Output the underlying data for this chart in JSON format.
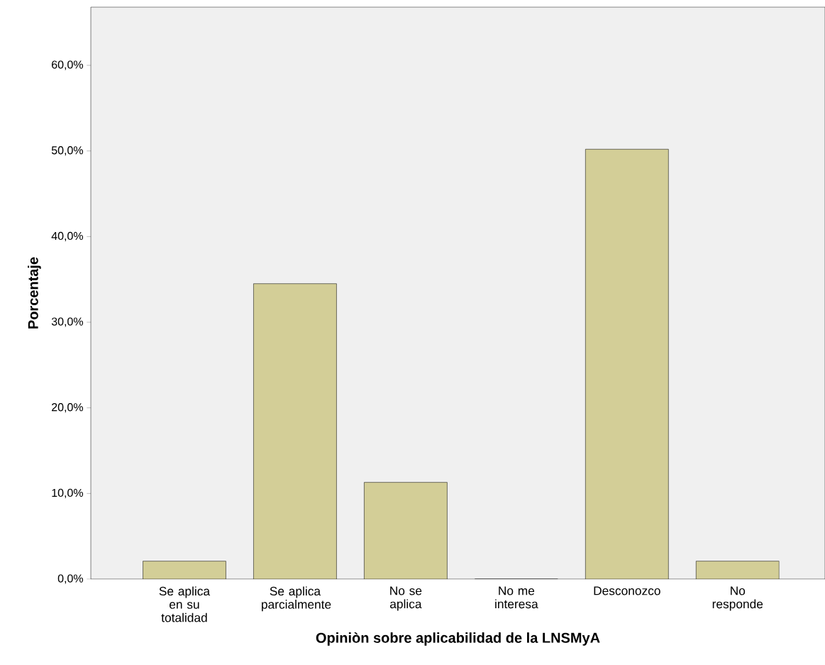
{
  "chart_data": {
    "type": "bar",
    "xlabel": "Opiniòn sobre aplicabilidad de la LNSMyA",
    "ylabel": "Porcentaje",
    "categories": [
      "Se aplica en su totalidad",
      "Se aplica parcialmente",
      "No se aplica",
      "No me interesa",
      "Desconozco",
      "No responde"
    ],
    "values": [
      2.1,
      34.5,
      11.3,
      0,
      50.2,
      2.1
    ],
    "color": "#d3ce97",
    "ylim": [
      0,
      66.8
    ],
    "yticks": [
      {
        "value": 0,
        "label": "0,0%"
      },
      {
        "value": 10,
        "label": "10,0%"
      },
      {
        "value": 20,
        "label": "20,0%"
      },
      {
        "value": 30,
        "label": "30,0%"
      },
      {
        "value": 40,
        "label": "40,0%"
      },
      {
        "value": 50,
        "label": "50,0%"
      },
      {
        "value": 60,
        "label": "60,0%"
      }
    ],
    "grid": false
  }
}
